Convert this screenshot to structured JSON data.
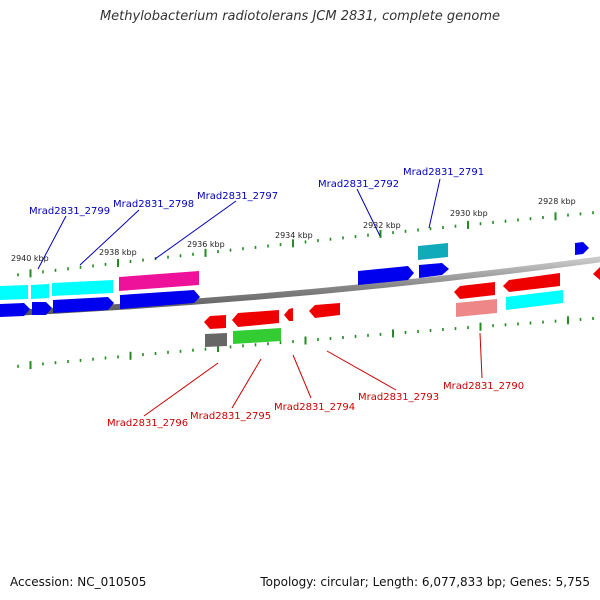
{
  "title": "Methylobacterium radiotolerans JCM 2831, complete genome",
  "footer": {
    "accession": "Accession: NC_010505",
    "topology": "Topology: circular; Length: 6,077,833 bp; Genes: 5,755"
  },
  "scale_labels": [
    "2940 kbp",
    "2938 kbp",
    "2936 kbp",
    "2934 kbp",
    "2932 kbp",
    "2930 kbp",
    "2928 kbp"
  ],
  "gene_labels_top": [
    "Mrad2831_2799",
    "Mrad2831_2798",
    "Mrad2831_2797",
    "Mrad2831_2792",
    "Mrad2831_2791"
  ],
  "gene_labels_bottom": [
    "Mrad2831_2796",
    "Mrad2831_2795",
    "Mrad2831_2794",
    "Mrad2831_2793",
    "Mrad2831_2790"
  ],
  "colors": {
    "forward_label": "#0000bb",
    "reverse_label": "#cc0000",
    "backbone": "#888888",
    "ticks": "#228b22",
    "cds_blue": "#0000ee",
    "cds_cyan": "#00ffff",
    "cds_teal": "#11aabb",
    "cds_magenta": "#ee1199",
    "cds_red": "#ee0000",
    "cds_salmon": "#ee8888",
    "cds_green": "#33cc33",
    "cds_gray": "#666666"
  }
}
